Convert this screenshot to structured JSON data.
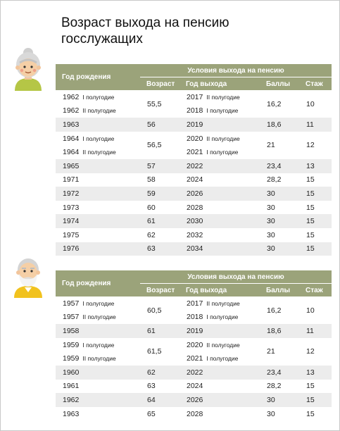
{
  "title": "Возраст выхода на пенсию госслужащих",
  "tables": [
    {
      "headers": {
        "birth": "Год рождения",
        "conditions": "Условия выхода на пенсию",
        "age": "Возраст",
        "exit": "Год выхода",
        "points": "Баллы",
        "stazh": "Стаж"
      },
      "groups": [
        {
          "birth": [
            {
              "year": "1962",
              "half": "I полугодие"
            },
            {
              "year": "1962",
              "half": "II полугодие"
            }
          ],
          "age": "55,5",
          "exit": [
            {
              "year": "2017",
              "half": "II полугодие"
            },
            {
              "year": "2018",
              "half": "I полугодие"
            }
          ],
          "points": "16,2",
          "stazh": "10"
        },
        {
          "birth": [
            {
              "year": "1963"
            }
          ],
          "age": "56",
          "exit": [
            {
              "year": "2019"
            }
          ],
          "points": "18,6",
          "stazh": "11"
        },
        {
          "birth": [
            {
              "year": "1964",
              "half": "I полугодие"
            },
            {
              "year": "1964",
              "half": "II полугодие"
            }
          ],
          "age": "56,5",
          "exit": [
            {
              "year": "2020",
              "half": "II полугодие"
            },
            {
              "year": "2021",
              "half": "I полугодие"
            }
          ],
          "points": "21",
          "stazh": "12"
        },
        {
          "birth": [
            {
              "year": "1965"
            }
          ],
          "age": "57",
          "exit": [
            {
              "year": "2022"
            }
          ],
          "points": "23,4",
          "stazh": "13"
        },
        {
          "birth": [
            {
              "year": "1971"
            }
          ],
          "age": "58",
          "exit": [
            {
              "year": "2024"
            }
          ],
          "points": "28,2",
          "stazh": "15"
        },
        {
          "birth": [
            {
              "year": "1972"
            }
          ],
          "age": "59",
          "exit": [
            {
              "year": "2026"
            }
          ],
          "points": "30",
          "stazh": "15"
        },
        {
          "birth": [
            {
              "year": "1973"
            }
          ],
          "age": "60",
          "exit": [
            {
              "year": "2028"
            }
          ],
          "points": "30",
          "stazh": "15"
        },
        {
          "birth": [
            {
              "year": "1974"
            }
          ],
          "age": "61",
          "exit": [
            {
              "year": "2030"
            }
          ],
          "points": "30",
          "stazh": "15"
        },
        {
          "birth": [
            {
              "year": "1975"
            }
          ],
          "age": "62",
          "exit": [
            {
              "year": "2032"
            }
          ],
          "points": "30",
          "stazh": "15"
        },
        {
          "birth": [
            {
              "year": "1976"
            }
          ],
          "age": "63",
          "exit": [
            {
              "year": "2034"
            }
          ],
          "points": "30",
          "stazh": "15"
        }
      ]
    },
    {
      "headers": {
        "birth": "Год рождения",
        "conditions": "Условия выхода на пенсию",
        "age": "Возраст",
        "exit": "Год выхода",
        "points": "Баллы",
        "stazh": "Стаж"
      },
      "groups": [
        {
          "birth": [
            {
              "year": "1957",
              "half": "I полугодие"
            },
            {
              "year": "1957",
              "half": "II полугодие"
            }
          ],
          "age": "60,5",
          "exit": [
            {
              "year": "2017",
              "half": "II полугодие"
            },
            {
              "year": "2018",
              "half": "I полугодие"
            }
          ],
          "points": "16,2",
          "stazh": "10"
        },
        {
          "birth": [
            {
              "year": "1958"
            }
          ],
          "age": "61",
          "exit": [
            {
              "year": "2019"
            }
          ],
          "points": "18,6",
          "stazh": "11"
        },
        {
          "birth": [
            {
              "year": "1959",
              "half": "I полугодие"
            },
            {
              "year": "1959",
              "half": "II полугодие"
            }
          ],
          "age": "61,5",
          "exit": [
            {
              "year": "2020",
              "half": "II полугодие"
            },
            {
              "year": "2021",
              "half": "I полугодие"
            }
          ],
          "points": "21",
          "stazh": "12"
        },
        {
          "birth": [
            {
              "year": "1960"
            }
          ],
          "age": "62",
          "exit": [
            {
              "year": "2022"
            }
          ],
          "points": "23,4",
          "stazh": "13"
        },
        {
          "birth": [
            {
              "year": "1961"
            }
          ],
          "age": "63",
          "exit": [
            {
              "year": "2024"
            }
          ],
          "points": "28,2",
          "stazh": "15"
        },
        {
          "birth": [
            {
              "year": "1962"
            }
          ],
          "age": "64",
          "exit": [
            {
              "year": "2026"
            }
          ],
          "points": "30",
          "stazh": "15"
        },
        {
          "birth": [
            {
              "year": "1963"
            }
          ],
          "age": "65",
          "exit": [
            {
              "year": "2028"
            }
          ],
          "points": "30",
          "stazh": "15"
        }
      ]
    }
  ]
}
